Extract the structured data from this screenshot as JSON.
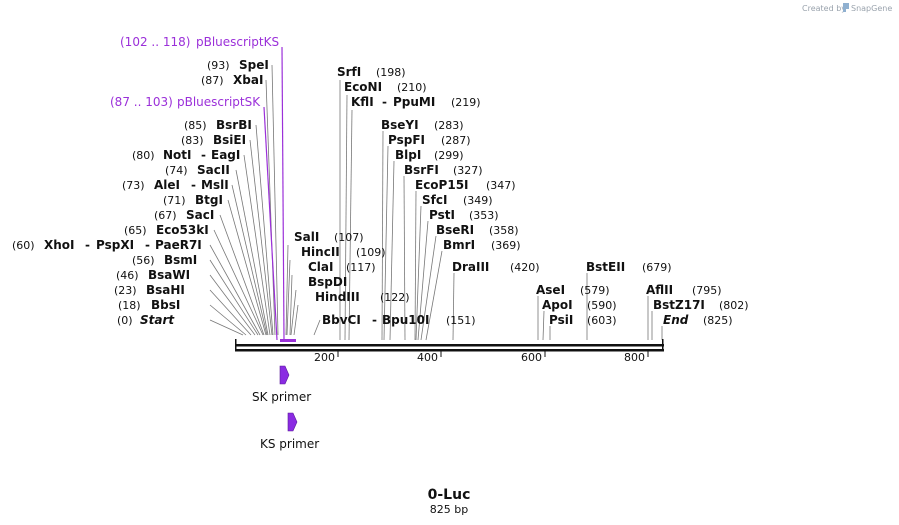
{
  "map": {
    "name": "0-Luc",
    "length_label": "825 bp",
    "total_bp": 825
  },
  "branding": {
    "created_by": "Created by",
    "product": "SnapGene"
  },
  "axis": {
    "ticks": [
      {
        "bp": 200,
        "label": "200"
      },
      {
        "bp": 400,
        "label": "400"
      },
      {
        "bp": 600,
        "label": "600"
      },
      {
        "bp": 800,
        "label": "800"
      }
    ]
  },
  "sites": [
    {
      "pos": "(0)",
      "names": [
        "Start"
      ],
      "italic": true
    },
    {
      "pos": "(18)",
      "names": [
        "BbsI"
      ]
    },
    {
      "pos": "(23)",
      "names": [
        "BsaHI"
      ]
    },
    {
      "pos": "(46)",
      "names": [
        "BsaWI"
      ]
    },
    {
      "pos": "(56)",
      "names": [
        "BsmI"
      ]
    },
    {
      "pos": "(60)",
      "names": [
        "XhoI",
        "PspXI",
        "PaeR7I"
      ]
    },
    {
      "pos": "(65)",
      "names": [
        "Eco53kI"
      ]
    },
    {
      "pos": "(67)",
      "names": [
        "SacI"
      ]
    },
    {
      "pos": "(71)",
      "names": [
        "BtgI"
      ]
    },
    {
      "pos": "(73)",
      "names": [
        "AleI",
        "MslI"
      ]
    },
    {
      "pos": "(74)",
      "names": [
        "SacII"
      ]
    },
    {
      "pos": "(80)",
      "names": [
        "NotI",
        "EagI"
      ]
    },
    {
      "pos": "(83)",
      "names": [
        "BsiEI"
      ]
    },
    {
      "pos": "(85)",
      "names": [
        "BsrBI"
      ]
    },
    {
      "pos": "(87)",
      "names": [
        "XbaI"
      ]
    },
    {
      "pos": "(93)",
      "names": [
        "SpeI"
      ]
    },
    {
      "pos": "(107)",
      "names": [
        "SalI"
      ]
    },
    {
      "pos": "(109)",
      "names": [
        "HincII"
      ]
    },
    {
      "pos": "(117)",
      "names": [
        "ClaI"
      ]
    },
    {
      "pos": "",
      "names": [
        "BspDI"
      ]
    },
    {
      "pos": "(122)",
      "names": [
        "HindIII"
      ]
    },
    {
      "pos": "(151)",
      "names": [
        "BbvCI",
        "Bpu10I"
      ]
    },
    {
      "pos": "(198)",
      "names": [
        "SrfI"
      ]
    },
    {
      "pos": "(210)",
      "names": [
        "EcoNI"
      ]
    },
    {
      "pos": "(219)",
      "names": [
        "KflI",
        "PpuMI"
      ]
    },
    {
      "pos": "(283)",
      "names": [
        "BseYI"
      ]
    },
    {
      "pos": "(287)",
      "names": [
        "PspFI"
      ]
    },
    {
      "pos": "(299)",
      "names": [
        "BlpI"
      ]
    },
    {
      "pos": "(327)",
      "names": [
        "BsrFI"
      ]
    },
    {
      "pos": "(347)",
      "names": [
        "EcoP15I"
      ]
    },
    {
      "pos": "(349)",
      "names": [
        "SfcI"
      ]
    },
    {
      "pos": "(353)",
      "names": [
        "PstI"
      ]
    },
    {
      "pos": "(358)",
      "names": [
        "BseRI"
      ]
    },
    {
      "pos": "(369)",
      "names": [
        "BmrI"
      ]
    },
    {
      "pos": "(420)",
      "names": [
        "DraIII"
      ]
    },
    {
      "pos": "(579)",
      "names": [
        "AseI"
      ]
    },
    {
      "pos": "(590)",
      "names": [
        "ApoI"
      ]
    },
    {
      "pos": "(603)",
      "names": [
        "PsiI"
      ]
    },
    {
      "pos": "(679)",
      "names": [
        "BstEII"
      ]
    },
    {
      "pos": "(795)",
      "names": [
        "AflII"
      ]
    },
    {
      "pos": "(802)",
      "names": [
        "BstZ17I"
      ]
    },
    {
      "pos": "(825)",
      "names": [
        "End"
      ],
      "italic": true
    }
  ],
  "features": [
    {
      "range": "(102 .. 118)",
      "name": "pBluescriptKS"
    },
    {
      "range": "(87 .. 103)",
      "name": "pBluescriptSK"
    }
  ],
  "primers": [
    {
      "name": "SK primer"
    },
    {
      "name": "KS primer"
    }
  ],
  "colors": {
    "feature": "#9b30d9",
    "primer": "#8a2be2",
    "backbone": "#111111"
  }
}
